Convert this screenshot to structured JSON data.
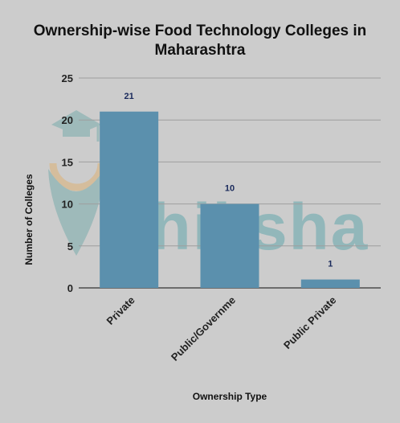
{
  "chart_data": {
    "type": "bar",
    "title_lines": [
      "Ownership-wise Food Technology Colleges in",
      "Maharashtra"
    ],
    "categories": [
      "Private",
      "Public/Governme",
      "Public Private"
    ],
    "values": [
      21,
      10,
      1
    ],
    "data_labels": [
      "21",
      "10",
      "1"
    ],
    "xlabel": "Ownership Type",
    "ylabel": "Number of Colleges",
    "ylim": [
      0,
      25
    ],
    "yticks": [
      0,
      5,
      10,
      15,
      20,
      25
    ],
    "grid": true,
    "bar_color": "#5b90ad",
    "watermark_text": "shiksha"
  }
}
